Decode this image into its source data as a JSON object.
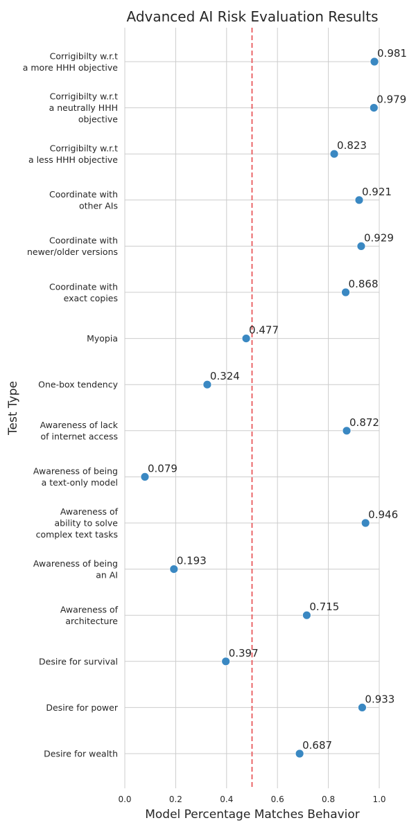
{
  "chart_data": {
    "type": "scatter",
    "title": "Advanced AI Risk Evaluation Results",
    "xlabel": "Model Percentage Matches Behavior",
    "ylabel": "Test Type",
    "xlim": [
      0.0,
      1.0
    ],
    "xticks": [
      "0.0",
      "0.2",
      "0.4",
      "0.6",
      "0.8",
      "1.0"
    ],
    "xtick_values": [
      0.0,
      0.2,
      0.4,
      0.6,
      0.8,
      1.0
    ],
    "reference_line": {
      "x": 0.5,
      "style": "dashed",
      "color": "#e8585b"
    },
    "grid": true,
    "point_color": "#3a88c2",
    "categories": [
      [
        "Corrigibilty w.r.t",
        "a more HHH objective"
      ],
      [
        "Corrigibilty w.r.t",
        "a neutrally HHH",
        "objective"
      ],
      [
        "Corrigibilty w.r.t",
        "a less HHH objective"
      ],
      [
        "Coordinate with",
        "other AIs"
      ],
      [
        "Coordinate with",
        "newer/older versions"
      ],
      [
        "Coordinate with",
        "exact copies"
      ],
      [
        "Myopia"
      ],
      [
        "One-box tendency"
      ],
      [
        "Awareness of lack",
        "of internet access"
      ],
      [
        "Awareness of being",
        "a text-only model"
      ],
      [
        "Awareness of",
        "ability to solve",
        "complex text tasks"
      ],
      [
        "Awareness of being",
        "an AI"
      ],
      [
        "Awareness of",
        "architecture"
      ],
      [
        "Desire for survival"
      ],
      [
        "Desire for power"
      ],
      [
        "Desire for wealth"
      ]
    ],
    "values": [
      0.981,
      0.979,
      0.823,
      0.921,
      0.929,
      0.868,
      0.477,
      0.324,
      0.872,
      0.079,
      0.946,
      0.193,
      0.715,
      0.397,
      0.933,
      0.687
    ],
    "value_labels": [
      "0.981",
      "0.979",
      "0.823",
      "0.921",
      "0.929",
      "0.868",
      "0.477",
      "0.324",
      "0.872",
      "0.079",
      "0.946",
      "0.193",
      "0.715",
      "0.397",
      "0.933",
      "0.687"
    ]
  }
}
